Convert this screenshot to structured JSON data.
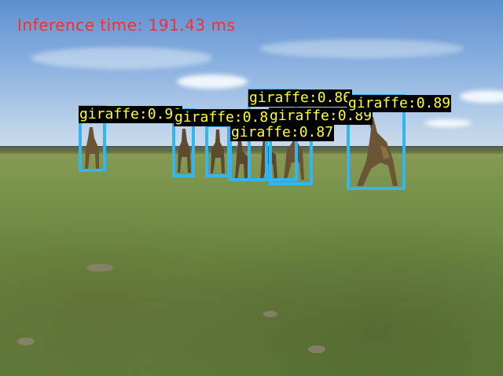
{
  "inference_label": "Inference time: 191.43 ms",
  "colors": {
    "box": "#33b5ef",
    "label_text": "#ffff2a",
    "label_background": "#000000",
    "inference_text": "#ff2a2a"
  },
  "detections": [
    {
      "label": "giraffe:0.90"
    },
    {
      "label": "giraffe:0.89"
    },
    {
      "label": "giraffe:0.87"
    },
    {
      "label": "giraffe:0.86"
    },
    {
      "label": "giraffe:0.89"
    },
    {
      "label": "giraffe:0.89"
    }
  ]
}
